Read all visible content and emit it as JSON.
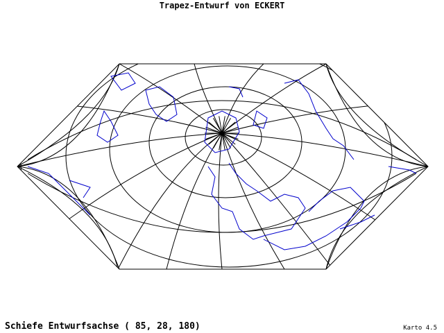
{
  "header": {
    "title": "Trapez-Entwurf von ECKERT"
  },
  "footer": {
    "caption": "Schiefe Entwurfsachse ( 85, 28, 180)",
    "version": "Karto 4.5"
  }
}
